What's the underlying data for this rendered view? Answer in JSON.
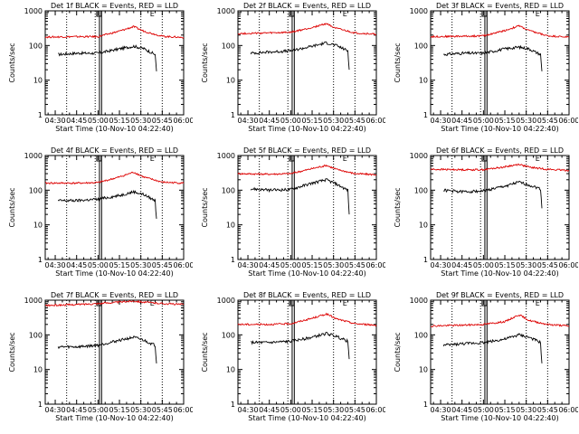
{
  "colors": {
    "events": "#000000",
    "lld": "#dd0000",
    "axis": "#000000",
    "background": "#ffffff"
  },
  "common": {
    "x_ticks": [
      "04:30",
      "04:45",
      "05:00",
      "05:15",
      "05:30",
      "05:45",
      "06:00"
    ],
    "y_ticks": [
      "1",
      "10",
      "100",
      "1000"
    ],
    "ylabel": "Counts/sec",
    "xlabel": "Start Time (10-Nov-10 04:22:40)",
    "flag_label": "E"
  },
  "chart_data": [
    {
      "title": "Det 1f BLACK = Events, RED = LLD",
      "type": "line",
      "yscale": "log",
      "ylim": [
        1,
        1000
      ],
      "xlim_minutes_after_0430": [
        -7,
        90
      ],
      "series": [
        {
          "name": "Events",
          "values": [
            [
              2,
              55
            ],
            [
              15,
              60
            ],
            [
              30,
              60
            ],
            [
              45,
              80
            ],
            [
              55,
              95
            ],
            [
              62,
              82
            ],
            [
              70,
              55
            ],
            [
              71,
              18
            ]
          ]
        },
        {
          "name": "LLD",
          "values": [
            [
              -7,
              175
            ],
            [
              15,
              180
            ],
            [
              30,
              180
            ],
            [
              45,
              260
            ],
            [
              55,
              350
            ],
            [
              62,
              260
            ],
            [
              75,
              185
            ],
            [
              90,
              170
            ]
          ]
        }
      ]
    },
    {
      "title": "Det 2f BLACK = Events, RED = LLD",
      "type": "line",
      "yscale": "log",
      "ylim": [
        1,
        1000
      ],
      "xlim_minutes_after_0430": [
        -7,
        90
      ],
      "series": [
        {
          "name": "Events",
          "values": [
            [
              2,
              60
            ],
            [
              15,
              65
            ],
            [
              30,
              70
            ],
            [
              45,
              95
            ],
            [
              55,
              120
            ],
            [
              62,
              100
            ],
            [
              70,
              70
            ],
            [
              71,
              20
            ]
          ]
        },
        {
          "name": "LLD",
          "values": [
            [
              -7,
              220
            ],
            [
              15,
              230
            ],
            [
              30,
              240
            ],
            [
              45,
              330
            ],
            [
              55,
              430
            ],
            [
              62,
              310
            ],
            [
              75,
              230
            ],
            [
              90,
              210
            ]
          ]
        }
      ]
    },
    {
      "title": "Det 3f BLACK = Events, RED = LLD",
      "type": "line",
      "yscale": "log",
      "ylim": [
        1,
        1000
      ],
      "xlim_minutes_after_0430": [
        -7,
        90
      ],
      "series": [
        {
          "name": "Events",
          "values": [
            [
              2,
              55
            ],
            [
              15,
              60
            ],
            [
              30,
              60
            ],
            [
              45,
              80
            ],
            [
              55,
              90
            ],
            [
              62,
              80
            ],
            [
              70,
              55
            ],
            [
              71,
              18
            ]
          ]
        },
        {
          "name": "LLD",
          "values": [
            [
              -7,
              180
            ],
            [
              15,
              185
            ],
            [
              30,
              190
            ],
            [
              45,
              270
            ],
            [
              55,
              370
            ],
            [
              62,
              270
            ],
            [
              75,
              190
            ],
            [
              90,
              175
            ]
          ]
        }
      ]
    },
    {
      "title": "Det 4f BLACK = Events, RED = LLD",
      "type": "line",
      "yscale": "log",
      "ylim": [
        1,
        1000
      ],
      "xlim_minutes_after_0430": [
        -7,
        90
      ],
      "series": [
        {
          "name": "Events",
          "values": [
            [
              2,
              50
            ],
            [
              15,
              50
            ],
            [
              30,
              55
            ],
            [
              45,
              70
            ],
            [
              55,
              90
            ],
            [
              62,
              75
            ],
            [
              70,
              50
            ],
            [
              71,
              15
            ]
          ]
        },
        {
          "name": "LLD",
          "values": [
            [
              -7,
              160
            ],
            [
              15,
              160
            ],
            [
              30,
              165
            ],
            [
              45,
              240
            ],
            [
              55,
              330
            ],
            [
              62,
              240
            ],
            [
              75,
              170
            ],
            [
              90,
              160
            ]
          ]
        }
      ]
    },
    {
      "title": "Det 5f BLACK = Events, RED = LLD",
      "type": "line",
      "yscale": "log",
      "ylim": [
        1,
        1000
      ],
      "xlim_minutes_after_0430": [
        -7,
        90
      ],
      "series": [
        {
          "name": "Events",
          "values": [
            [
              2,
              110
            ],
            [
              15,
              100
            ],
            [
              30,
              105
            ],
            [
              45,
              160
            ],
            [
              55,
              200
            ],
            [
              62,
              150
            ],
            [
              70,
              100
            ],
            [
              71,
              20
            ]
          ]
        },
        {
          "name": "LLD",
          "values": [
            [
              -7,
              300
            ],
            [
              15,
              290
            ],
            [
              30,
              300
            ],
            [
              45,
              420
            ],
            [
              55,
              520
            ],
            [
              62,
              400
            ],
            [
              75,
              300
            ],
            [
              90,
              280
            ]
          ]
        }
      ]
    },
    {
      "title": "Det 6f BLACK = Events, RED = LLD",
      "type": "line",
      "yscale": "log",
      "ylim": [
        1,
        1000
      ],
      "xlim_minutes_after_0430": [
        -7,
        90
      ],
      "series": [
        {
          "name": "Events",
          "values": [
            [
              2,
              100
            ],
            [
              15,
              90
            ],
            [
              30,
              95
            ],
            [
              45,
              130
            ],
            [
              55,
              170
            ],
            [
              62,
              140
            ],
            [
              70,
              110
            ],
            [
              71,
              30
            ]
          ]
        },
        {
          "name": "LLD",
          "values": [
            [
              -7,
              400
            ],
            [
              15,
              390
            ],
            [
              30,
              390
            ],
            [
              45,
              470
            ],
            [
              55,
              560
            ],
            [
              62,
              460
            ],
            [
              75,
              400
            ],
            [
              90,
              370
            ]
          ]
        }
      ]
    },
    {
      "title": "Det 7f BLACK = Events, RED = LLD",
      "type": "line",
      "yscale": "log",
      "ylim": [
        1,
        1000
      ],
      "xlim_minutes_after_0430": [
        -7,
        90
      ],
      "series": [
        {
          "name": "Events",
          "values": [
            [
              2,
              45
            ],
            [
              15,
              45
            ],
            [
              30,
              50
            ],
            [
              45,
              70
            ],
            [
              55,
              85
            ],
            [
              62,
              70
            ],
            [
              70,
              50
            ],
            [
              71,
              15
            ]
          ]
        },
        {
          "name": "LLD",
          "values": [
            [
              -7,
              700
            ],
            [
              15,
              750
            ],
            [
              30,
              800
            ],
            [
              45,
              880
            ],
            [
              55,
              950
            ],
            [
              62,
              880
            ],
            [
              75,
              800
            ],
            [
              90,
              750
            ]
          ]
        }
      ]
    },
    {
      "title": "Det 8f BLACK = Events, RED = LLD",
      "type": "line",
      "yscale": "log",
      "ylim": [
        1,
        1000
      ],
      "xlim_minutes_after_0430": [
        -7,
        90
      ],
      "series": [
        {
          "name": "Events",
          "values": [
            [
              2,
              60
            ],
            [
              15,
              60
            ],
            [
              30,
              65
            ],
            [
              45,
              85
            ],
            [
              55,
              110
            ],
            [
              62,
              90
            ],
            [
              70,
              65
            ],
            [
              71,
              20
            ]
          ]
        },
        {
          "name": "LLD",
          "values": [
            [
              -7,
              200
            ],
            [
              15,
              200
            ],
            [
              30,
              210
            ],
            [
              45,
              300
            ],
            [
              55,
              400
            ],
            [
              62,
              290
            ],
            [
              75,
              210
            ],
            [
              90,
              190
            ]
          ]
        }
      ]
    },
    {
      "title": "Det 9f BLACK = Events, RED = LLD",
      "type": "line",
      "yscale": "log",
      "ylim": [
        1,
        1000
      ],
      "xlim_minutes_after_0430": [
        -7,
        90
      ],
      "series": [
        {
          "name": "Events",
          "values": [
            [
              2,
              50
            ],
            [
              15,
              55
            ],
            [
              30,
              60
            ],
            [
              45,
              75
            ],
            [
              55,
              100
            ],
            [
              62,
              85
            ],
            [
              70,
              60
            ],
            [
              71,
              15
            ]
          ]
        },
        {
          "name": "LLD",
          "values": [
            [
              -7,
              180
            ],
            [
              15,
              190
            ],
            [
              30,
              200
            ],
            [
              45,
              240
            ],
            [
              55,
              380
            ],
            [
              62,
              260
            ],
            [
              75,
              200
            ],
            [
              90,
              180
            ]
          ]
        }
      ]
    }
  ]
}
